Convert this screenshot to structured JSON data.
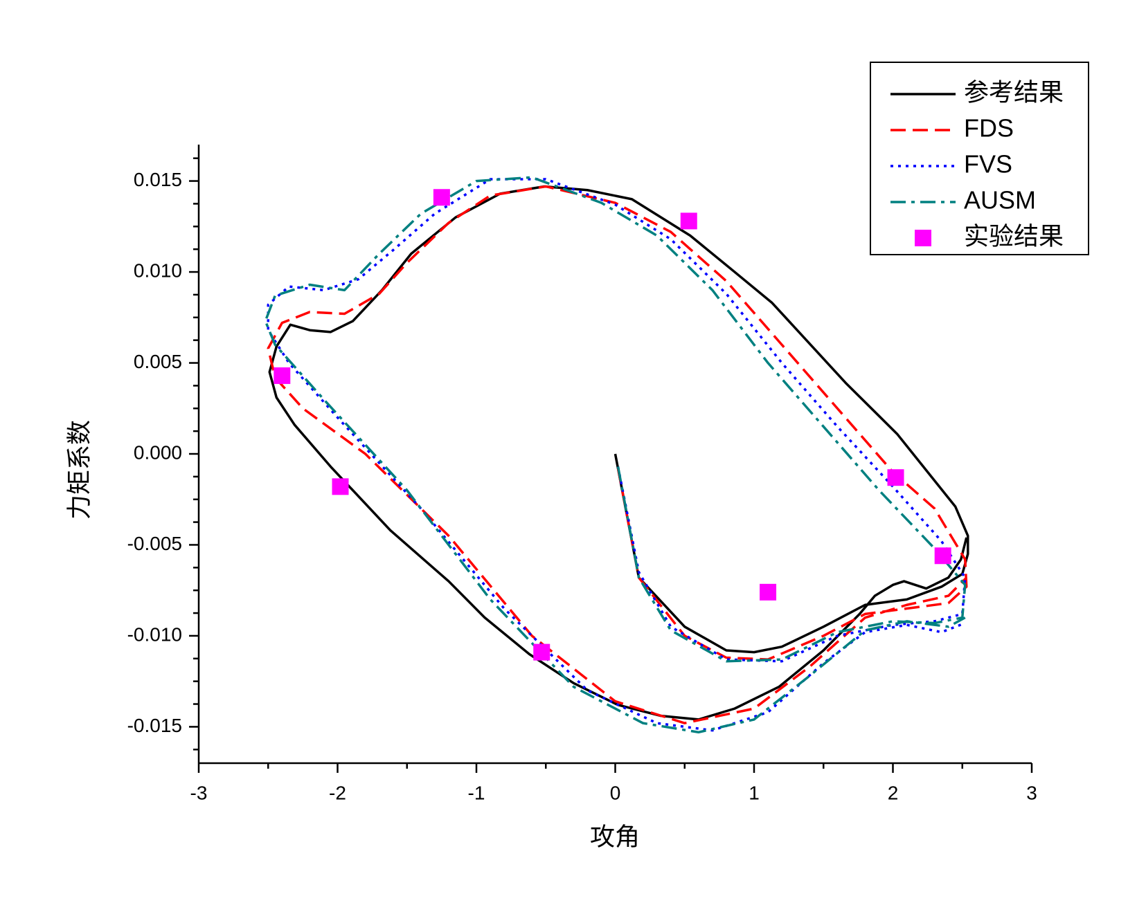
{
  "chart_data": {
    "type": "line",
    "xlabel": "攻角",
    "ylabel": "力矩系数",
    "xlim": [
      -3,
      3
    ],
    "xticks": [
      -3,
      -2,
      -1,
      0,
      1,
      2,
      3
    ],
    "xminorticks": [
      -2.5,
      -1.5,
      -0.5,
      0.5,
      1.5,
      2.5
    ],
    "ylim": [
      -0.017,
      0.017
    ],
    "yticks": [
      0.015,
      {
        "value": 0.01,
        "label": "0.010"
      },
      0.005,
      {
        "value": 0,
        "label": "0.000"
      },
      -0.005,
      {
        "value": -0.01,
        "label": "-0.010"
      },
      -0.015
    ],
    "yminorticks": [
      0.01625,
      0.01375,
      0.0125,
      0.01125,
      0.00875,
      0.0075,
      0.00625,
      0.00375,
      0.0025,
      0.00125,
      -0.00125,
      -0.0025,
      -0.00375,
      -0.00625,
      -0.0075,
      -0.00875,
      -0.01125,
      -0.0125,
      -0.01375,
      -0.01625
    ],
    "legend": "upper right",
    "series": [
      {
        "name": "参考结果",
        "color": "#000000",
        "dash": "solid",
        "x": [
          0,
          0.17,
          0.5,
          0.8,
          1.0,
          1.2,
          1.5,
          1.8,
          2.1,
          2.35,
          2.5,
          2.54,
          2.54,
          2.45,
          2.03,
          1.66,
          1.13,
          0.86,
          0.54,
          0.12,
          -0.2,
          -0.51,
          -0.83,
          -1.15,
          -1.47,
          -1.68,
          -1.89,
          -2.05,
          -2.2,
          -2.34,
          -2.44,
          -2.49,
          -2.44,
          -2.31,
          -2.05,
          -1.62,
          -1.2,
          -0.94,
          -0.62,
          -0.3,
          0.02,
          0.33,
          0.6,
          0.86,
          1.18,
          1.5,
          1.76,
          1.87,
          2.0,
          2.08,
          2.24,
          2.4,
          2.49,
          2.53
        ],
        "values": [
          0,
          -0.0068,
          -0.0095,
          -0.0108,
          -0.0109,
          -0.0106,
          -0.0095,
          -0.0083,
          -0.008,
          -0.0073,
          -0.0066,
          -0.0055,
          -0.0045,
          -0.0029,
          0.0011,
          0.0039,
          0.0083,
          0.01,
          0.012,
          0.014,
          0.0145,
          0.0147,
          0.0143,
          0.013,
          0.011,
          0.009,
          0.0073,
          0.0067,
          0.0068,
          0.0071,
          0.0059,
          0.0045,
          0.0031,
          0.0016,
          -0.0007,
          -0.0042,
          -0.007,
          -0.009,
          -0.011,
          -0.0126,
          -0.0138,
          -0.0144,
          -0.0146,
          -0.014,
          -0.0128,
          -0.0108,
          -0.0088,
          -0.0078,
          -0.0072,
          -0.007,
          -0.0074,
          -0.0068,
          -0.0058,
          -0.0046
        ]
      },
      {
        "name": "FDS",
        "color": "#ff0000",
        "dash": "dashed",
        "x": [
          0.02,
          0.17,
          0.5,
          0.8,
          1.1,
          1.5,
          1.8,
          2.1,
          2.4,
          2.53,
          2.52,
          2.3,
          2.0,
          1.6,
          1.2,
          0.8,
          0.4,
          0.0,
          -0.5,
          -0.9,
          -1.2,
          -1.5,
          -1.7,
          -1.95,
          -2.2,
          -2.4,
          -2.5,
          -2.45,
          -2.25,
          -1.8,
          -1.2,
          -0.6,
          0.0,
          0.5,
          1.0,
          1.4,
          1.8,
          2.1,
          2.4,
          2.53
        ],
        "values": [
          -0.0008,
          -0.0068,
          -0.01,
          -0.0112,
          -0.0113,
          -0.01,
          -0.0088,
          -0.0085,
          -0.0082,
          -0.0073,
          -0.0058,
          -0.003,
          -0.001,
          0.0025,
          0.006,
          0.0095,
          0.0122,
          0.0138,
          0.0147,
          0.0142,
          0.0127,
          0.0105,
          0.0088,
          0.0077,
          0.0078,
          0.0072,
          0.0058,
          0.0042,
          0.0025,
          0.0,
          -0.0045,
          -0.01,
          -0.0136,
          -0.0148,
          -0.014,
          -0.0117,
          -0.009,
          -0.0083,
          -0.0078,
          -0.0068
        ]
      },
      {
        "name": "FVS",
        "color": "#0000ff",
        "dash": "dotted",
        "x": [
          0.02,
          0.17,
          0.4,
          0.8,
          1.2,
          1.6,
          2.0,
          2.3,
          2.5,
          2.52,
          2.35,
          2.0,
          1.6,
          1.2,
          0.8,
          0.4,
          0.0,
          -0.5,
          -0.9,
          -1.3,
          -1.6,
          -1.85,
          -2.1,
          -2.35,
          -2.5,
          -2.5,
          -2.35,
          -2.0,
          -1.4,
          -0.8,
          -0.2,
          0.3,
          0.7,
          1.1,
          1.5,
          1.8,
          2.1,
          2.35,
          2.52
        ],
        "values": [
          -0.0007,
          -0.0065,
          -0.0095,
          -0.0113,
          -0.0114,
          -0.01,
          -0.0094,
          -0.0092,
          -0.0088,
          -0.0068,
          -0.0048,
          -0.0018,
          0.0015,
          0.005,
          0.0088,
          0.0118,
          0.0137,
          0.0151,
          0.0151,
          0.0132,
          0.0112,
          0.0096,
          0.009,
          0.0092,
          0.0082,
          0.0068,
          0.005,
          0.002,
          -0.003,
          -0.0085,
          -0.013,
          -0.0148,
          -0.0152,
          -0.0142,
          -0.0115,
          -0.0098,
          -0.0094,
          -0.0098,
          -0.0093
        ]
      },
      {
        "name": "AUSM",
        "color": "#008080",
        "dash": "dashdot",
        "x": [
          0.02,
          0.17,
          0.4,
          0.8,
          1.2,
          1.6,
          2.0,
          2.3,
          2.5,
          2.52,
          2.3,
          1.9,
          1.5,
          1.1,
          0.7,
          0.3,
          -0.1,
          -0.6,
          -1.0,
          -1.4,
          -1.7,
          -1.95,
          -2.2,
          -2.45,
          -2.52,
          -2.45,
          -2.1,
          -1.5,
          -0.9,
          -0.3,
          0.2,
          0.6,
          1.0,
          1.4,
          1.8,
          2.1,
          2.4,
          2.52
        ],
        "values": [
          -0.0007,
          -0.0068,
          -0.0097,
          -0.0114,
          -0.0113,
          -0.0098,
          -0.0092,
          -0.0093,
          -0.009,
          -0.0072,
          -0.0052,
          -0.002,
          0.0015,
          0.005,
          0.009,
          0.012,
          0.0138,
          0.0152,
          0.015,
          0.0132,
          0.011,
          0.009,
          0.0093,
          0.0087,
          0.0073,
          0.006,
          0.003,
          -0.002,
          -0.008,
          -0.0128,
          -0.0148,
          -0.0153,
          -0.0146,
          -0.0122,
          -0.0097,
          -0.0092,
          -0.0095,
          -0.009
        ]
      },
      {
        "name": "实验结果",
        "color": "#ff00ff",
        "marker": "square",
        "x": [
          -2.4,
          -1.98,
          -1.25,
          -0.53,
          0.53,
          1.1,
          2.02,
          2.36
        ],
        "values": [
          0.0043,
          -0.0018,
          0.0141,
          -0.0109,
          0.0128,
          -0.0076,
          -0.0013,
          -0.0056
        ]
      }
    ]
  }
}
